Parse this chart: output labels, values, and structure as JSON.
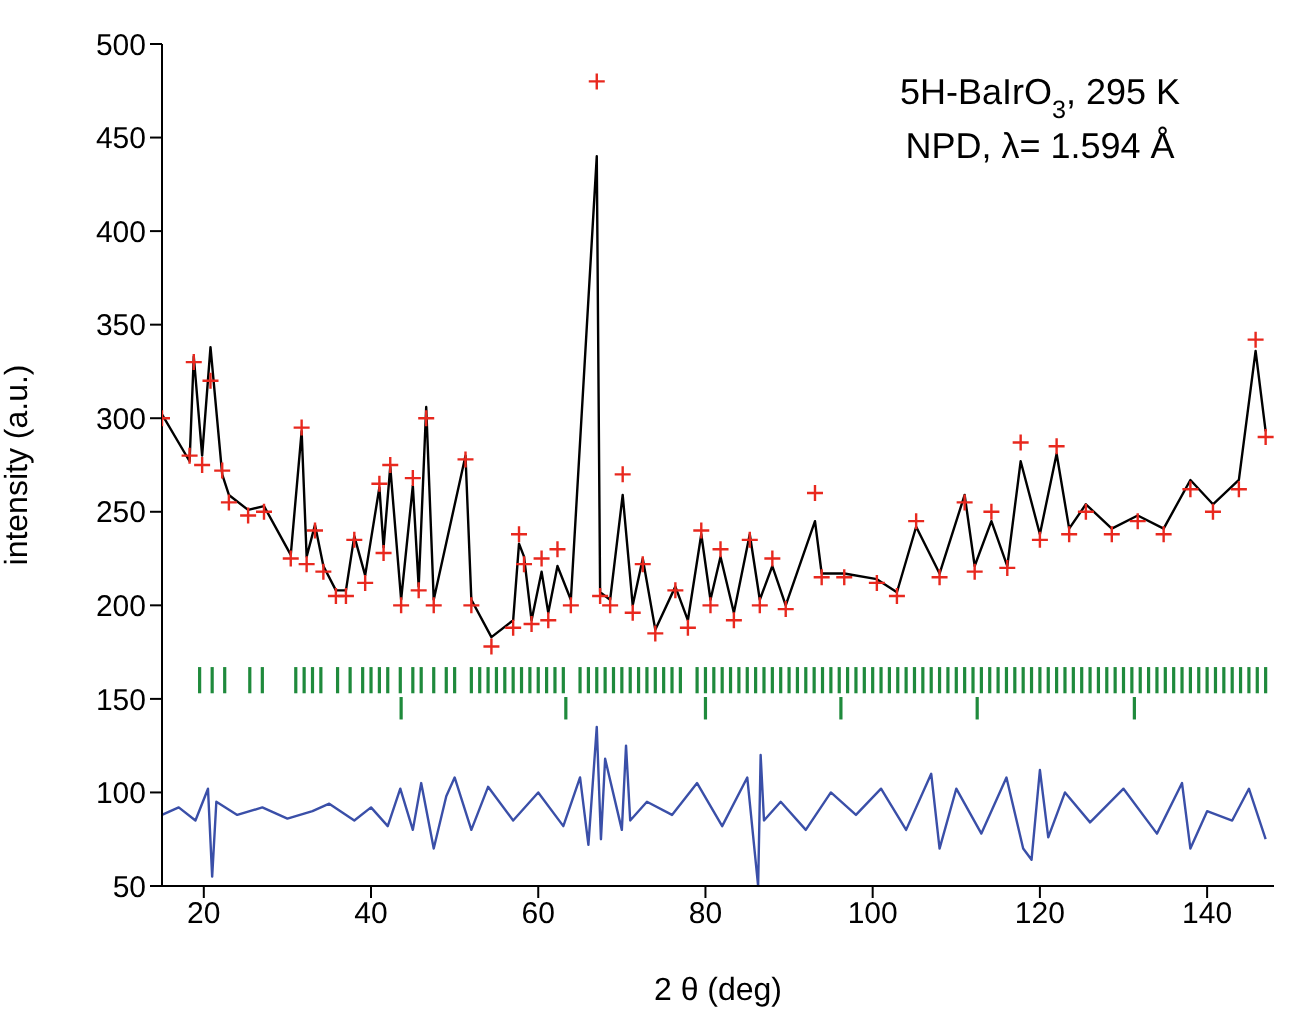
{
  "chart_data": {
    "type": "line",
    "xlabel": "2 θ (deg)",
    "ylabel": "intensity (a.u.)",
    "xlim": [
      15,
      148
    ],
    "ylim": [
      50,
      500
    ],
    "xticks": [
      20,
      40,
      60,
      80,
      100,
      120,
      140
    ],
    "yticks": [
      50,
      100,
      150,
      200,
      250,
      300,
      350,
      400,
      450,
      500
    ],
    "annotations": [
      "5H-BaIrO$_{3}$, 295 K",
      "NPD, λ= 1.594 Å"
    ],
    "series": [
      {
        "type": "scatter",
        "marker": "cross",
        "color": "#e8281e",
        "x": [
          15,
          18.3,
          18.8,
          19.8,
          20.8,
          22.2,
          23,
          25.3,
          27.2,
          30.4,
          31.7,
          32.3,
          33.3,
          34.3,
          35.8,
          37,
          38,
          39.3,
          41,
          41.5,
          42.3,
          43.6,
          45,
          45.7,
          46.6,
          47.5,
          51.3,
          52,
          54.4,
          57,
          57.7,
          58.3,
          59.2,
          60.4,
          61.2,
          62.3,
          63.9,
          67,
          67.4,
          68.6,
          70.1,
          71.3,
          72.5,
          74,
          76.4,
          77.9,
          79.5,
          80.6,
          81.8,
          83.4,
          85.3,
          86.5,
          88,
          89.6,
          93.1,
          93.9,
          96.6,
          100.5,
          102.9,
          105.2,
          108,
          111,
          112.2,
          114.2,
          116.1,
          117.7,
          120,
          122,
          123.5,
          125.5,
          128.6,
          131.7,
          134.8,
          138,
          140.7,
          143.8,
          145.8,
          147
        ],
        "values": [
          300,
          280,
          330,
          275,
          320,
          272,
          255,
          248,
          250,
          225,
          295,
          222,
          240,
          218,
          205,
          205,
          235,
          212,
          265,
          228,
          275,
          200,
          268,
          208,
          300,
          200,
          278,
          200,
          178,
          188,
          238,
          222,
          190,
          225,
          192,
          230,
          200,
          480,
          205,
          200,
          270,
          196,
          222,
          185,
          208,
          188,
          240,
          200,
          230,
          192,
          235,
          200,
          225,
          198,
          260,
          215,
          215,
          212,
          205,
          245,
          215,
          255,
          218,
          250,
          220,
          287,
          235,
          285,
          238,
          250,
          238,
          245,
          238,
          262,
          250,
          262,
          342,
          290
        ]
      },
      {
        "color": "#000000",
        "x": [
          15,
          18.3,
          18.8,
          19.8,
          20.8,
          22.2,
          23,
          25.3,
          27.2,
          30.4,
          31.7,
          32.3,
          33.3,
          34.3,
          35.8,
          37,
          38,
          39.3,
          41,
          41.5,
          42.3,
          43.6,
          45,
          45.7,
          46.6,
          47.5,
          51.3,
          52,
          54.4,
          57,
          57.7,
          58.3,
          59.2,
          60.4,
          61.2,
          62.3,
          63.9,
          67,
          67.4,
          68.6,
          70.1,
          71.3,
          72.5,
          74,
          76.4,
          77.9,
          79.5,
          80.6,
          81.8,
          83.4,
          85.3,
          86.5,
          88,
          89.6,
          93.1,
          93.9,
          96.6,
          100.5,
          102.9,
          105.2,
          108,
          111,
          112.2,
          114.2,
          116.1,
          117.7,
          120,
          122,
          123.5,
          125.5,
          128.6,
          131.7,
          134.8,
          138,
          140.7,
          143.8,
          145.8,
          147
        ],
        "values": [
          302,
          277,
          333,
          280,
          338,
          270,
          259,
          251,
          253,
          227,
          293,
          226,
          243,
          221,
          208,
          208,
          237,
          216,
          263,
          231,
          274,
          203,
          264,
          210,
          306,
          203,
          280,
          203,
          183,
          192,
          233,
          226,
          192,
          218,
          196,
          221,
          203,
          440,
          207,
          203,
          259,
          200,
          225,
          187,
          210,
          192,
          238,
          203,
          226,
          196,
          238,
          203,
          221,
          200,
          245,
          217,
          217,
          214,
          207,
          242,
          217,
          259,
          221,
          245,
          221,
          277,
          238,
          281,
          241,
          254,
          241,
          248,
          241,
          267,
          254,
          267,
          336,
          293
        ]
      },
      {
        "color": "#3a4fa8",
        "x": [
          15,
          17,
          19,
          20.5,
          21,
          21.5,
          24,
          27,
          30,
          33,
          35,
          38,
          40,
          42,
          43.5,
          45,
          46,
          47.5,
          49,
          50,
          52,
          54,
          57,
          60,
          63,
          65,
          66,
          67,
          67.5,
          68,
          70,
          70.5,
          71,
          73,
          76,
          79,
          82,
          85,
          86.3,
          86.6,
          87,
          89,
          92,
          95,
          98,
          101,
          104,
          107,
          108,
          110,
          113,
          116,
          118,
          119,
          120,
          121,
          123,
          126,
          130,
          134,
          137,
          138,
          140,
          143,
          145,
          147
        ],
        "values": [
          88,
          92,
          85,
          102,
          55,
          95,
          88,
          92,
          86,
          90,
          94,
          85,
          92,
          82,
          102,
          80,
          105,
          70,
          98,
          108,
          80,
          103,
          85,
          100,
          82,
          108,
          72,
          135,
          75,
          118,
          80,
          125,
          85,
          95,
          88,
          105,
          82,
          108,
          50,
          120,
          85,
          95,
          80,
          100,
          88,
          102,
          80,
          110,
          70,
          102,
          78,
          108,
          70,
          64,
          112,
          76,
          100,
          84,
          102,
          78,
          105,
          70,
          90,
          85,
          102,
          75
        ]
      },
      {
        "type": "bar",
        "color": "#1f8a3c",
        "base": [
          153,
          153,
          153,
          153,
          153,
          153,
          153,
          153,
          153,
          153,
          153,
          153,
          153,
          153,
          153,
          153,
          153,
          153,
          153,
          153,
          153,
          153,
          153,
          153,
          153,
          153,
          153,
          153,
          153,
          153,
          153,
          153,
          153,
          153,
          153,
          153,
          153,
          153,
          153,
          153,
          153,
          153,
          153,
          153,
          153,
          153,
          153,
          153,
          153,
          153,
          153,
          153,
          153,
          153,
          153,
          153,
          153,
          153,
          153,
          153,
          153,
          153,
          153,
          153,
          153,
          153,
          153,
          153,
          153,
          153,
          153,
          153,
          153,
          153,
          153,
          153,
          153,
          153,
          153,
          153,
          153,
          153,
          153,
          153,
          153,
          153,
          153,
          153,
          153,
          153,
          153,
          153,
          153,
          153,
          153,
          153,
          153,
          153,
          153,
          153,
          153,
          153,
          153,
          153,
          153,
          153,
          153,
          153,
          153,
          153,
          153,
          153,
          153,
          153,
          153
        ],
        "x": [
          19.5,
          21,
          22.5,
          25.5,
          27,
          31,
          32,
          33,
          34,
          36,
          37.5,
          39,
          40,
          41,
          42,
          43.5,
          45,
          46,
          47.5,
          49,
          50,
          52,
          53,
          54,
          55,
          56,
          57,
          58,
          59,
          60,
          61,
          62,
          63,
          65,
          66,
          67,
          68,
          69,
          70,
          71,
          72,
          73,
          74,
          75,
          76,
          77,
          79,
          80,
          81,
          82,
          83,
          84,
          85,
          86,
          87,
          88,
          89,
          90,
          91,
          92,
          93,
          94,
          95,
          96,
          97,
          98,
          99,
          100,
          101,
          102,
          103,
          104,
          105,
          106,
          107,
          108,
          109,
          110,
          111,
          112,
          113,
          114,
          115,
          116,
          117,
          118,
          119,
          120,
          121,
          122,
          123,
          124,
          125,
          126,
          127,
          128,
          129,
          130,
          131,
          132,
          133,
          134,
          135,
          136,
          137,
          138,
          139,
          140,
          141,
          142,
          143,
          144,
          145,
          146,
          147
        ],
        "values": [
          14,
          14,
          14,
          14,
          14,
          14,
          14,
          14,
          14,
          14,
          14,
          14,
          14,
          14,
          14,
          14,
          14,
          14,
          14,
          14,
          14,
          14,
          14,
          14,
          14,
          14,
          14,
          14,
          14,
          14,
          14,
          14,
          14,
          14,
          14,
          14,
          14,
          14,
          14,
          14,
          14,
          14,
          14,
          14,
          14,
          14,
          14,
          14,
          14,
          14,
          14,
          14,
          14,
          14,
          14,
          14,
          14,
          14,
          14,
          14,
          14,
          14,
          14,
          14,
          14,
          14,
          14,
          14,
          14,
          14,
          14,
          14,
          14,
          14,
          14,
          14,
          14,
          14,
          14,
          14,
          14,
          14,
          14,
          14,
          14,
          14,
          14,
          14,
          14,
          14,
          14,
          14,
          14,
          14,
          14,
          14,
          14,
          14,
          14,
          14,
          14,
          14,
          14,
          14,
          14,
          14,
          14,
          14,
          14,
          14,
          14,
          14,
          14,
          14,
          14
        ]
      },
      {
        "type": "bar",
        "color": "#1f8a3c",
        "base": [
          139,
          139,
          139,
          139,
          139,
          139
        ],
        "x": [
          43.6,
          63.3,
          80,
          96.2,
          112.5,
          131.3
        ],
        "values": [
          12,
          12,
          12,
          12,
          12,
          12
        ]
      }
    ]
  }
}
